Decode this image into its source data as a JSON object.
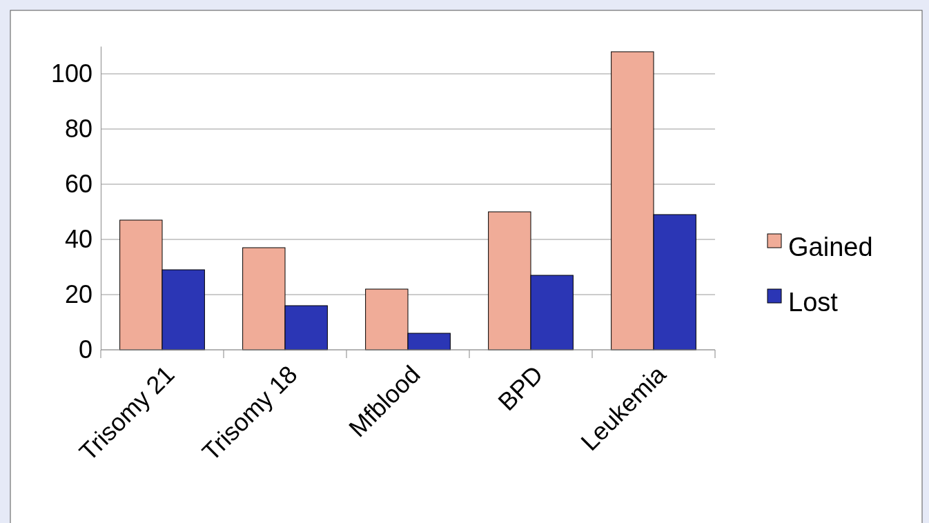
{
  "chart_data": {
    "type": "bar",
    "categories": [
      "Trisomy 21",
      "Trisomy 18",
      "Mfblood",
      "BPD",
      "Leukemia"
    ],
    "series": [
      {
        "name": "Gained",
        "color": "#f0ac98",
        "values": [
          47,
          37,
          22,
          50,
          108
        ]
      },
      {
        "name": "Lost",
        "color": "#2b36b5",
        "values": [
          29,
          16,
          6,
          27,
          49
        ]
      }
    ],
    "ylim": [
      0,
      110
    ],
    "yticks": [
      0,
      20,
      40,
      60,
      80,
      100
    ],
    "grid": "y",
    "legend": "right"
  }
}
